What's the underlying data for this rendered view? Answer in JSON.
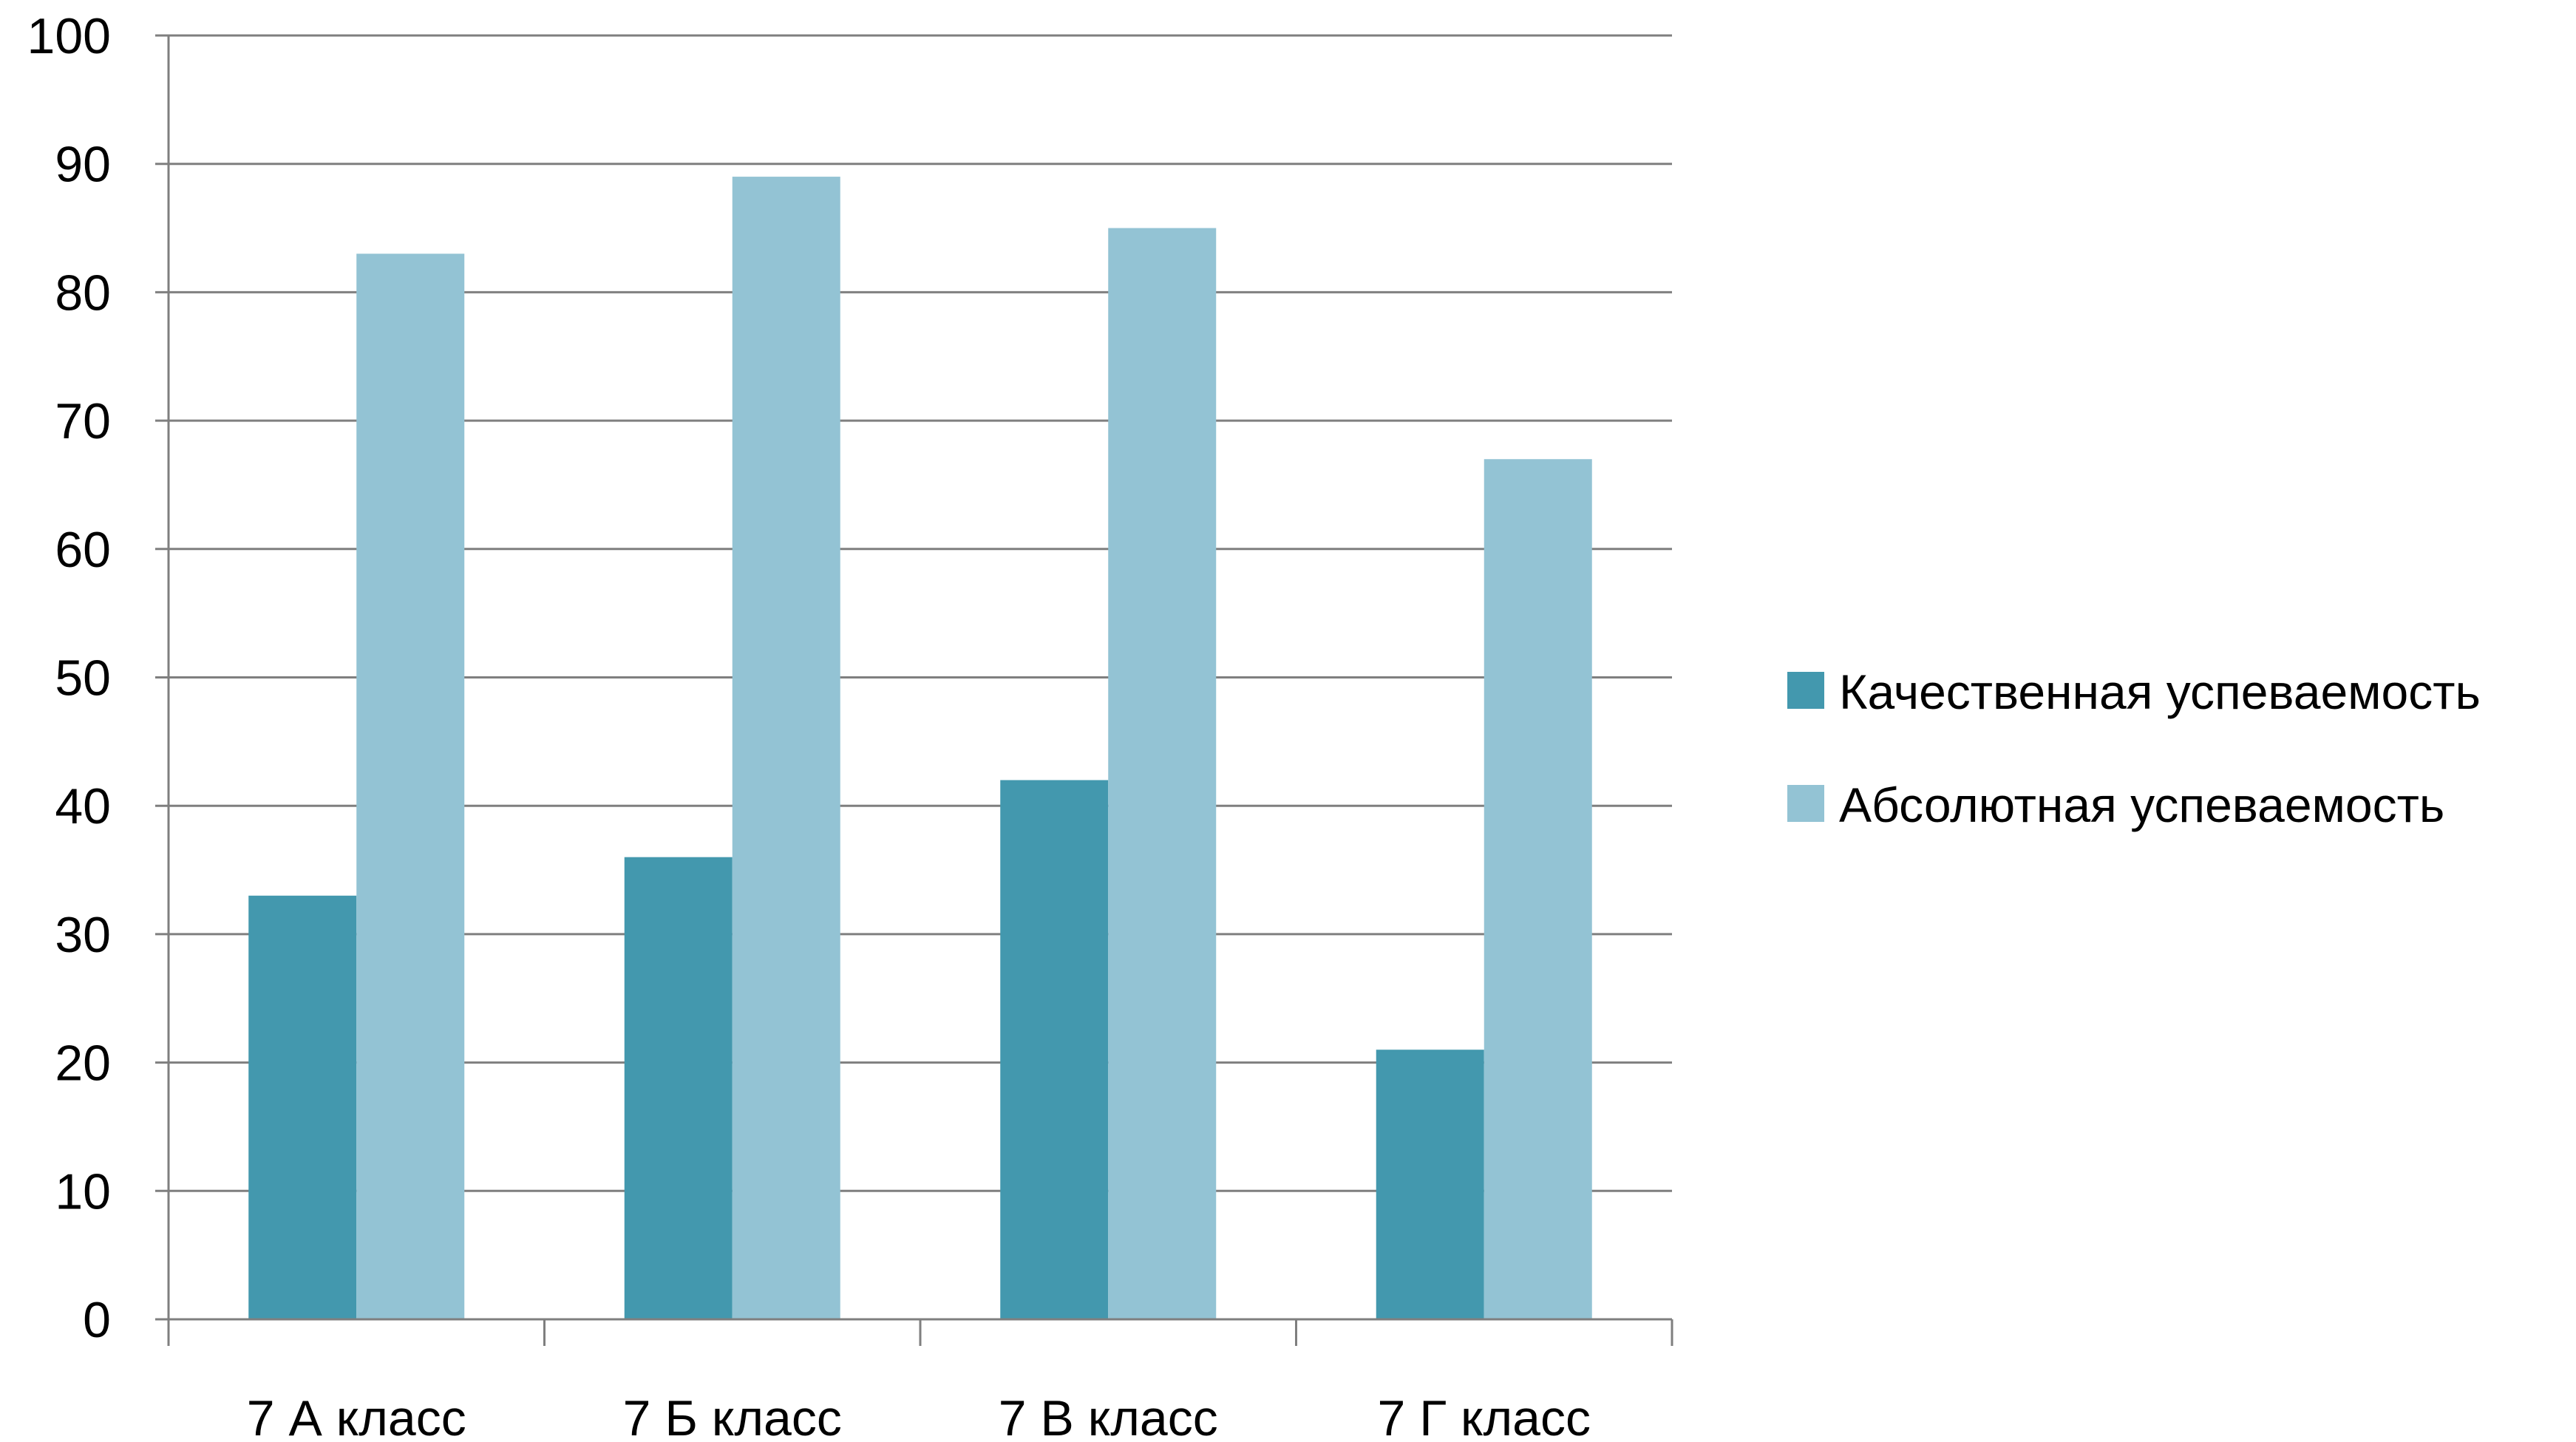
{
  "chart_data": {
    "type": "bar",
    "title": "",
    "xlabel": "",
    "ylabel": "",
    "categories": [
      "7 А класс",
      "7 Б класс",
      "7 В класс",
      "7 Г класс"
    ],
    "series": [
      {
        "name": "Качественная успеваемость",
        "values": [
          33,
          36,
          42,
          21
        ],
        "color": "#4398AE"
      },
      {
        "name": "Абсолютная успеваемость",
        "values": [
          83,
          89,
          85,
          67
        ],
        "color": "#93C3D4"
      }
    ],
    "ylim": [
      0,
      100
    ],
    "yticks": [
      0,
      10,
      20,
      30,
      40,
      50,
      60,
      70,
      80,
      90,
      100
    ],
    "grid": true,
    "legend_position": "right",
    "colors": {
      "gridline": "#7F7F7F",
      "axis": "#7F7F7F",
      "text": "#000000"
    }
  }
}
